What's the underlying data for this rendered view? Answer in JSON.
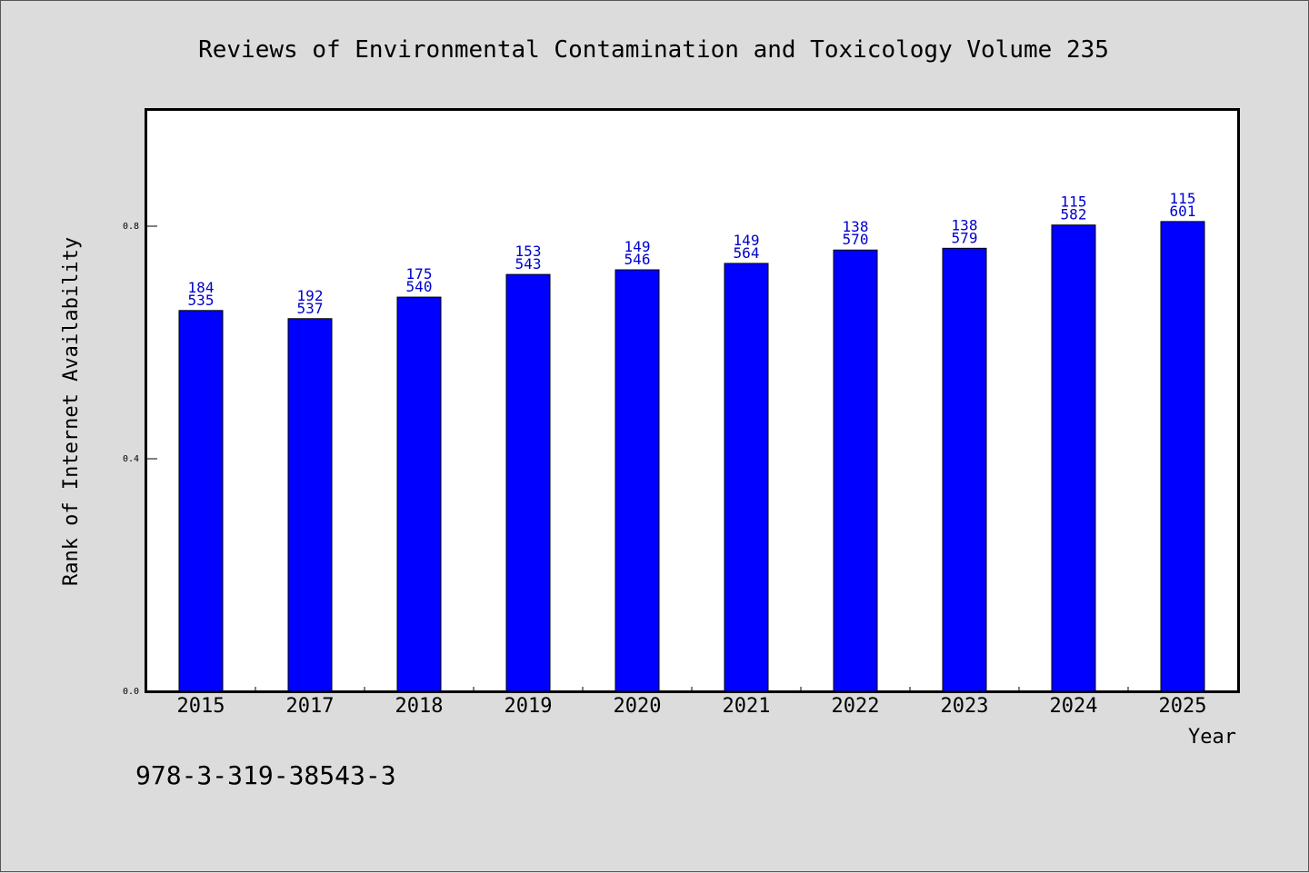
{
  "chart_data": {
    "type": "bar",
    "title": "Reviews of Environmental Contamination and Toxicology Volume 235",
    "xlabel": "Year",
    "ylabel": "Rank of Internet Availability",
    "categories": [
      "2015",
      "2017",
      "2018",
      "2019",
      "2020",
      "2021",
      "2022",
      "2023",
      "2024",
      "2025"
    ],
    "values": [
      0.655,
      0.641,
      0.678,
      0.717,
      0.725,
      0.736,
      0.759,
      0.762,
      0.802,
      0.808
    ],
    "labels_top": [
      "184",
      "192",
      "175",
      "153",
      "149",
      "149",
      "138",
      "138",
      "115",
      "115"
    ],
    "labels_bottom": [
      "535",
      "537",
      "540",
      "543",
      "546",
      "564",
      "570",
      "579",
      "582",
      "601"
    ],
    "ylim": [
      0,
      1.0
    ],
    "yticks": [
      0.0,
      0.4,
      0.8
    ],
    "ytick_labels": [
      "0.0",
      "0.4",
      "0.8"
    ],
    "grid": false,
    "bar_color": "#0000ff",
    "label_color": "#0000cc",
    "plot_background": "#ffffff",
    "page_background": "#dcdcdc"
  },
  "footer": {
    "isbn": "978-3-319-38543-3"
  }
}
